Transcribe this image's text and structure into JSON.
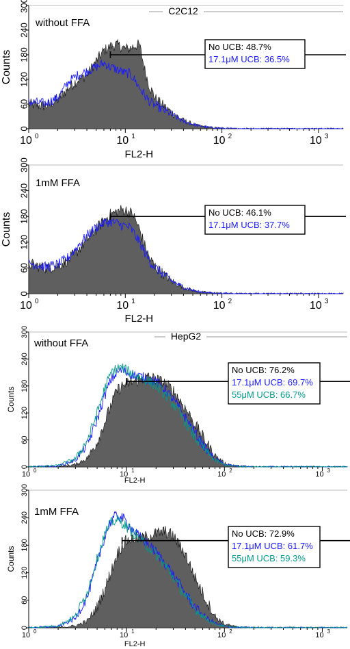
{
  "figure": {
    "group_labels": [
      "C2C12",
      "HepG2"
    ]
  },
  "chart_data": [
    {
      "type": "histogram",
      "group": "C2C12",
      "title": "without FFA",
      "xlabel": "FL2-H",
      "ylabel": "Counts",
      "xscale": "log",
      "xlim": [
        1,
        1800
      ],
      "ylim": [
        0,
        300
      ],
      "yticks": [
        0,
        60,
        120,
        180,
        240,
        300
      ],
      "xtick_labels": [
        "10",
        "10",
        "10",
        "10"
      ],
      "xtick_exps": [
        "0",
        "1",
        "2",
        "3"
      ],
      "gate": {
        "x_start": 7,
        "x_end": 2000,
        "y": 180
      },
      "legend": [
        "No UCB: 48.7%",
        "17.1μM UCB: 36.5%"
      ],
      "series": [
        {
          "name": "No UCB",
          "color": "#5f5f5f",
          "style": "filled",
          "x": [
            1,
            1.5,
            2,
            2.6,
            3.2,
            4,
            5,
            6,
            7,
            8,
            9,
            10,
            11,
            12,
            14,
            16,
            18,
            21,
            25,
            30,
            40,
            55,
            75,
            100,
            150,
            300,
            1800
          ],
          "y": [
            60,
            55,
            70,
            100,
            118,
            130,
            165,
            190,
            200,
            205,
            200,
            195,
            195,
            200,
            205,
            140,
            100,
            70,
            55,
            40,
            20,
            8,
            3,
            1,
            0,
            0,
            0
          ]
        },
        {
          "name": "17.1μM UCB",
          "color": "#1a1aff",
          "style": "line",
          "x": [
            1,
            1.5,
            2,
            2.6,
            3.2,
            4,
            5,
            6,
            7,
            8,
            9,
            10,
            11,
            12,
            14,
            16,
            18,
            21,
            25,
            30,
            40,
            55,
            75,
            100,
            150,
            300,
            1800
          ],
          "y": [
            65,
            62,
            75,
            115,
            130,
            140,
            150,
            160,
            150,
            145,
            140,
            135,
            135,
            125,
            100,
            80,
            65,
            55,
            45,
            35,
            18,
            8,
            3,
            1,
            0,
            0,
            0
          ]
        }
      ]
    },
    {
      "type": "histogram",
      "group": "C2C12",
      "title": "1mM FFA",
      "xlabel": "FL2-H",
      "ylabel": "Counts",
      "xscale": "log",
      "xlim": [
        1,
        1800
      ],
      "ylim": [
        0,
        300
      ],
      "yticks": [
        0,
        60,
        120,
        180,
        240,
        300
      ],
      "xtick_labels": [
        "10",
        "10",
        "10",
        "10"
      ],
      "xtick_exps": [
        "0",
        "1",
        "2",
        "3"
      ],
      "gate": {
        "x_start": 7,
        "x_end": 2000,
        "y": 180
      },
      "legend": [
        "No UCB: 46.1%",
        "17.1μM UCB: 37.7%"
      ],
      "series": [
        {
          "name": "No UCB",
          "color": "#5f5f5f",
          "style": "filled",
          "x": [
            1,
            1.5,
            2,
            2.6,
            3.2,
            4,
            5,
            6,
            7,
            8,
            9,
            10,
            11,
            12,
            14,
            16,
            18,
            21,
            25,
            30,
            40,
            55,
            75,
            100,
            150,
            300,
            1800
          ],
          "y": [
            70,
            60,
            65,
            80,
            100,
            125,
            150,
            170,
            185,
            190,
            195,
            195,
            190,
            185,
            150,
            110,
            80,
            60,
            45,
            30,
            15,
            5,
            2,
            1,
            0,
            0,
            0
          ]
        },
        {
          "name": "17.1μM UCB",
          "color": "#1a1aff",
          "style": "line",
          "x": [
            1,
            1.5,
            2,
            2.6,
            3.2,
            4,
            5,
            6,
            7,
            8,
            9,
            10,
            11,
            12,
            14,
            16,
            18,
            21,
            25,
            30,
            40,
            55,
            75,
            100,
            150,
            300,
            1800
          ],
          "y": [
            72,
            62,
            68,
            85,
            110,
            135,
            155,
            165,
            168,
            165,
            160,
            158,
            155,
            145,
            120,
            95,
            75,
            58,
            45,
            30,
            15,
            5,
            2,
            1,
            0,
            0,
            0
          ]
        }
      ]
    },
    {
      "type": "histogram",
      "group": "HepG2",
      "title": "without FFA",
      "xlabel": "FL2-H",
      "ylabel": "Counts",
      "xscale": "log",
      "xlim": [
        1,
        1800
      ],
      "ylim": [
        0,
        300
      ],
      "yticks": [
        0,
        60,
        120,
        180,
        240,
        300
      ],
      "xtick_labels": [
        "10",
        "10",
        "10",
        "10"
      ],
      "xtick_exps": [
        "0",
        "1",
        "2",
        "3"
      ],
      "gate": {
        "x_start": 10,
        "x_end": 2000,
        "y": 190
      },
      "legend": [
        "No UCB: 76.2%",
        "17.1μM UCB: 69.7%",
        "55μM UCB: 66.7%"
      ],
      "series": [
        {
          "name": "No UCB",
          "color": "#5f5f5f",
          "style": "filled",
          "x": [
            1,
            2,
            3,
            4,
            5,
            6,
            7,
            8,
            9,
            10,
            12,
            14,
            17,
            20,
            25,
            30,
            40,
            50,
            65,
            80,
            100,
            130,
            200,
            1800
          ],
          "y": [
            0,
            1,
            5,
            20,
            55,
            100,
            140,
            170,
            180,
            185,
            190,
            195,
            200,
            195,
            185,
            170,
            130,
            95,
            55,
            25,
            8,
            2,
            0,
            0
          ]
        },
        {
          "name": "17.1μM UCB",
          "color": "#1a1aff",
          "style": "line",
          "x": [
            1,
            2,
            3,
            4,
            5,
            6,
            7,
            8,
            9,
            10,
            12,
            14,
            17,
            20,
            25,
            30,
            40,
            50,
            65,
            80,
            100,
            130,
            200,
            1800
          ],
          "y": [
            0,
            2,
            15,
            50,
            105,
            160,
            195,
            210,
            215,
            210,
            205,
            200,
            195,
            190,
            170,
            150,
            110,
            75,
            40,
            18,
            6,
            2,
            0,
            0
          ]
        },
        {
          "name": "55μM UCB",
          "color": "#009a8a",
          "style": "line",
          "x": [
            1,
            2,
            3,
            4,
            5,
            6,
            7,
            8,
            9,
            10,
            12,
            14,
            17,
            20,
            25,
            30,
            40,
            50,
            65,
            80,
            100,
            130,
            200,
            1800
          ],
          "y": [
            0,
            3,
            18,
            60,
            120,
            175,
            210,
            220,
            220,
            215,
            205,
            198,
            190,
            180,
            160,
            140,
            100,
            65,
            35,
            15,
            5,
            1,
            0,
            0
          ]
        }
      ]
    },
    {
      "type": "histogram",
      "group": "HepG2",
      "title": "1mM FFA",
      "xlabel": "FL2-H",
      "ylabel": "Counts",
      "xscale": "log",
      "xlim": [
        1,
        1800
      ],
      "ylim": [
        0,
        300
      ],
      "yticks": [
        0,
        60,
        120,
        180,
        240,
        300
      ],
      "xtick_labels": [
        "10",
        "10",
        "10",
        "10"
      ],
      "xtick_exps": [
        "0",
        "1",
        "2",
        "3"
      ],
      "gate": {
        "x_start": 9,
        "x_end": 2000,
        "y": 190
      },
      "legend": [
        "No UCB: 72.9%",
        "17.1μM UCB: 61.7%",
        "55μM UCB: 59.3%"
      ],
      "series": [
        {
          "name": "No UCB",
          "color": "#5f5f5f",
          "style": "filled",
          "x": [
            1,
            2,
            3,
            4,
            5,
            6,
            7,
            8,
            9,
            10,
            12,
            14,
            17,
            20,
            25,
            30,
            40,
            50,
            65,
            80,
            100,
            130,
            200,
            1800
          ],
          "y": [
            0,
            1,
            4,
            15,
            45,
            85,
            125,
            160,
            180,
            190,
            195,
            195,
            200,
            205,
            210,
            200,
            160,
            110,
            60,
            25,
            8,
            2,
            0,
            0
          ]
        },
        {
          "name": "17.1μM UCB",
          "color": "#1a1aff",
          "style": "line",
          "x": [
            1,
            2,
            3,
            4,
            5,
            6,
            7,
            8,
            9,
            10,
            12,
            14,
            17,
            20,
            25,
            30,
            40,
            50,
            65,
            80,
            100,
            130,
            200,
            1800
          ],
          "y": [
            0,
            3,
            20,
            70,
            140,
            200,
            235,
            245,
            240,
            230,
            210,
            195,
            180,
            165,
            140,
            115,
            75,
            45,
            22,
            10,
            3,
            1,
            0,
            0
          ]
        },
        {
          "name": "55μM UCB",
          "color": "#009a8a",
          "style": "line",
          "x": [
            1,
            2,
            3,
            4,
            5,
            6,
            7,
            8,
            9,
            10,
            12,
            14,
            17,
            20,
            25,
            30,
            40,
            50,
            65,
            80,
            100,
            130,
            200,
            1800
          ],
          "y": [
            0,
            4,
            25,
            80,
            150,
            205,
            230,
            235,
            230,
            220,
            205,
            190,
            175,
            160,
            135,
            110,
            70,
            40,
            20,
            8,
            3,
            1,
            0,
            0
          ]
        }
      ]
    }
  ]
}
